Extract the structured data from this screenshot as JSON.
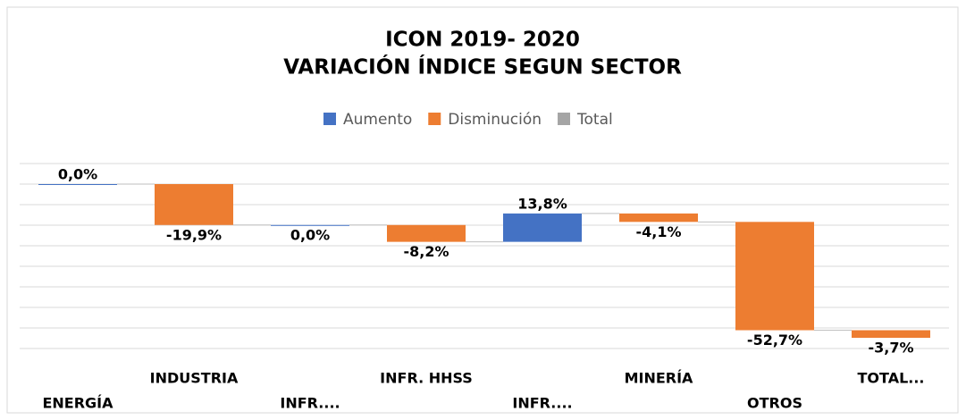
{
  "chart_data": {
    "type": "waterfall",
    "title": [
      "ICON 2019- 2020",
      "VARIACIÓN ÍNDICE SEGUN SECTOR"
    ],
    "legend": [
      {
        "name": "Aumento",
        "color": "#4472c4"
      },
      {
        "name": "Disminución",
        "color": "#ed7d31"
      },
      {
        "name": "Total",
        "color": "#a5a5a5"
      }
    ],
    "categories": [
      "ENERGÍA",
      "INDUSTRIA",
      "INFR....",
      "INFR. HHSS",
      "INFR....",
      "MINERÍA",
      "OTROS",
      "TOTAL..."
    ],
    "values": [
      0.0,
      -19.9,
      0.0,
      -8.2,
      13.8,
      -4.1,
      -52.7,
      -3.7
    ],
    "value_labels": [
      "0,0%",
      "-19,9%",
      "0,0%",
      "-8,2%",
      "13,8%",
      "-4,1%",
      "-52,7%",
      "-3,7%"
    ],
    "ylim": [
      -80,
      10
    ],
    "yticks": [
      10,
      0,
      -10,
      -20,
      -30,
      -40,
      -50,
      -60,
      -70,
      -80
    ],
    "grid": true
  }
}
